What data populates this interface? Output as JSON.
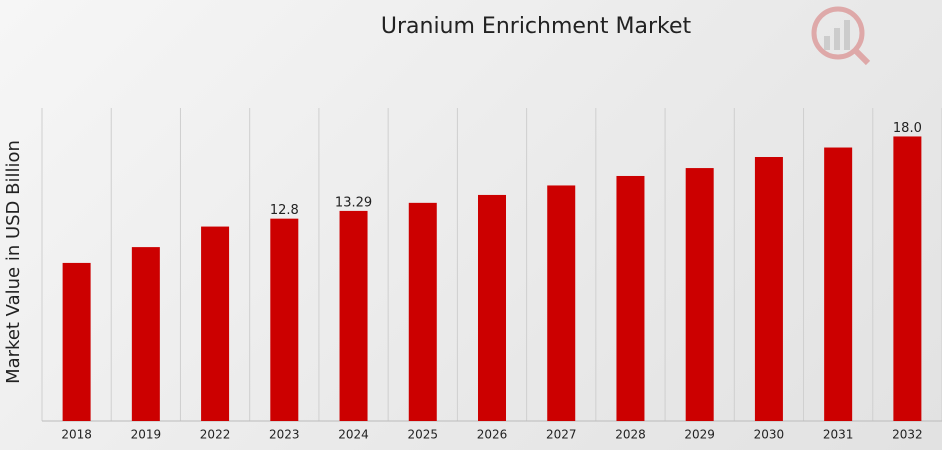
{
  "chart_data": {
    "type": "bar",
    "title": "Uranium Enrichment Market",
    "y_label": "Market Value in USD Billion",
    "categories": [
      "2018",
      "2019",
      "2022",
      "2023",
      "2024",
      "2025",
      "2026",
      "2027",
      "2028",
      "2029",
      "2030",
      "2031",
      "2032"
    ],
    "values": [
      10.0,
      11.0,
      12.3,
      12.8,
      13.29,
      13.8,
      14.3,
      14.9,
      15.5,
      16.0,
      16.7,
      17.3,
      18.0
    ],
    "value_labels": [
      null,
      null,
      null,
      "12.8",
      "13.29",
      null,
      null,
      null,
      null,
      null,
      null,
      null,
      "18.0"
    ],
    "color": "#cc0000",
    "ylim": [
      0,
      19.8
    ],
    "grid": true
  }
}
